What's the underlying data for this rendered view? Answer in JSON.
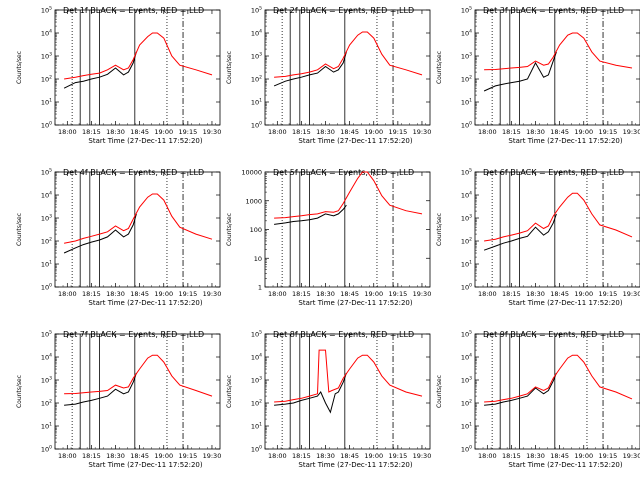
{
  "figure": {
    "ylabel": "Counts/sec",
    "xlabel": "Start Time (27-Dec-11 17:52:20)",
    "x_tick_labels": [
      "18:00",
      "18:15",
      "18:30",
      "18:45",
      "19:00",
      "19:15",
      "19:30"
    ]
  },
  "chart_data": [
    {
      "type": "line",
      "title": "Det 1f BLACK = Events, RED = LLD",
      "xlabel": "Start Time (27-Dec-11 17:52:20)",
      "ylabel": "Counts/sec",
      "y_scale": "log",
      "x_ticks": [
        "18:00",
        "18:15",
        "18:30",
        "18:45",
        "19:00",
        "19:15",
        "19:30"
      ],
      "y_ticks": [
        "10^0",
        "10^1",
        "10^2",
        "10^3",
        "10^4",
        "10^5"
      ],
      "ylim": [
        1,
        100000
      ],
      "series": [
        {
          "name": "Events",
          "color": "#000000",
          "x": [
            "17:58",
            "18:05",
            "18:10",
            "18:15",
            "18:20",
            "18:25",
            "18:30",
            "18:35",
            "18:38",
            "18:41",
            "18:43"
          ],
          "y": [
            40,
            70,
            80,
            100,
            120,
            160,
            300,
            150,
            200,
            500,
            1500
          ]
        },
        {
          "name": "LLD",
          "color": "#ff0000",
          "x": [
            "17:58",
            "18:05",
            "18:10",
            "18:15",
            "18:20",
            "18:25",
            "18:30",
            "18:35",
            "18:38",
            "18:41",
            "18:45",
            "18:50",
            "18:53",
            "18:56",
            "19:00",
            "19:05",
            "19:10",
            "19:20",
            "19:30"
          ],
          "y": [
            100,
            120,
            140,
            160,
            180,
            250,
            400,
            250,
            300,
            700,
            3000,
            7000,
            10000,
            10000,
            6000,
            1000,
            400,
            250,
            150
          ]
        }
      ]
    },
    {
      "type": "line",
      "title": "Det 2f BLACK = Events, RED = LLD",
      "xlabel": "Start Time (27-Dec-11 17:52:20)",
      "ylabel": "Counts/sec",
      "y_scale": "log",
      "x_ticks": [
        "18:00",
        "18:15",
        "18:30",
        "18:45",
        "19:00",
        "19:15",
        "19:30"
      ],
      "y_ticks": [
        "10^0",
        "10^1",
        "10^2",
        "10^3",
        "10^4",
        "10^5"
      ],
      "ylim": [
        1,
        100000
      ],
      "series": [
        {
          "name": "Events",
          "color": "#000000",
          "x": [
            "17:58",
            "18:05",
            "18:10",
            "18:15",
            "18:20",
            "18:25",
            "18:30",
            "18:35",
            "18:38",
            "18:41",
            "18:43"
          ],
          "y": [
            50,
            80,
            100,
            120,
            150,
            180,
            350,
            200,
            250,
            500,
            1500
          ]
        },
        {
          "name": "LLD",
          "color": "#ff0000",
          "x": [
            "17:58",
            "18:05",
            "18:10",
            "18:15",
            "18:20",
            "18:25",
            "18:30",
            "18:35",
            "18:38",
            "18:41",
            "18:45",
            "18:50",
            "18:53",
            "18:56",
            "19:00",
            "19:05",
            "19:10",
            "19:20",
            "19:30"
          ],
          "y": [
            120,
            130,
            150,
            170,
            200,
            250,
            450,
            280,
            350,
            800,
            3000,
            8000,
            11000,
            11000,
            6000,
            1200,
            400,
            250,
            150
          ]
        }
      ]
    },
    {
      "type": "line",
      "title": "Det 3f BLACK = Events, RED = LLD",
      "xlabel": "Start Time (27-Dec-11 17:52:20)",
      "ylabel": "Counts/sec",
      "y_scale": "log",
      "x_ticks": [
        "18:00",
        "18:15",
        "18:30",
        "18:45",
        "19:00",
        "19:15",
        "19:30"
      ],
      "y_ticks": [
        "10^0",
        "10^1",
        "10^2",
        "10^3",
        "10^4",
        "10^5"
      ],
      "ylim": [
        1,
        100000
      ],
      "series": [
        {
          "name": "Events",
          "color": "#000000",
          "x": [
            "17:58",
            "18:05",
            "18:10",
            "18:15",
            "18:20",
            "18:25",
            "18:30",
            "18:35",
            "18:38",
            "18:41",
            "18:43"
          ],
          "y": [
            30,
            50,
            60,
            70,
            80,
            100,
            500,
            120,
            150,
            600,
            1500
          ]
        },
        {
          "name": "LLD",
          "color": "#ff0000",
          "x": [
            "17:58",
            "18:05",
            "18:10",
            "18:15",
            "18:20",
            "18:25",
            "18:30",
            "18:35",
            "18:38",
            "18:41",
            "18:45",
            "18:50",
            "18:53",
            "18:56",
            "19:00",
            "19:05",
            "19:10",
            "19:20",
            "19:30"
          ],
          "y": [
            250,
            260,
            280,
            300,
            320,
            350,
            600,
            400,
            450,
            900,
            3000,
            8000,
            10000,
            10000,
            6000,
            1500,
            600,
            400,
            300
          ]
        }
      ]
    },
    {
      "type": "line",
      "title": "Det 4f BLACK = Events, RED = LLD",
      "xlabel": "Start Time (27-Dec-11 17:52:20)",
      "ylabel": "Counts/sec",
      "y_scale": "log",
      "x_ticks": [
        "18:00",
        "18:15",
        "18:30",
        "18:45",
        "19:00",
        "19:15",
        "19:30"
      ],
      "y_ticks": [
        "10^0",
        "10^1",
        "10^2",
        "10^3",
        "10^4",
        "10^5"
      ],
      "ylim": [
        1,
        100000
      ],
      "series": [
        {
          "name": "Events",
          "color": "#000000",
          "x": [
            "17:58",
            "18:05",
            "18:10",
            "18:15",
            "18:20",
            "18:25",
            "18:30",
            "18:35",
            "18:38",
            "18:41",
            "18:43"
          ],
          "y": [
            30,
            50,
            70,
            90,
            110,
            150,
            300,
            150,
            200,
            500,
            1500
          ]
        },
        {
          "name": "LLD",
          "color": "#ff0000",
          "x": [
            "17:58",
            "18:05",
            "18:10",
            "18:15",
            "18:20",
            "18:25",
            "18:30",
            "18:35",
            "18:38",
            "18:41",
            "18:45",
            "18:50",
            "18:53",
            "18:56",
            "19:00",
            "19:05",
            "19:10",
            "19:20",
            "19:30"
          ],
          "y": [
            80,
            100,
            130,
            160,
            200,
            250,
            450,
            280,
            350,
            900,
            3000,
            8000,
            11000,
            11000,
            6000,
            1200,
            400,
            200,
            120
          ]
        }
      ]
    },
    {
      "type": "line",
      "title": "Det 5f BLACK = Events, RED = LLD",
      "xlabel": "Start Time (27-Dec-11 17:52:20)",
      "ylabel": "Counts/sec",
      "y_scale": "log",
      "x_ticks": [
        "18:00",
        "18:15",
        "18:30",
        "18:45",
        "19:00",
        "19:15",
        "19:30"
      ],
      "y_ticks": [
        "1",
        "10",
        "100",
        "1000",
        "10000"
      ],
      "ylim": [
        1,
        10000
      ],
      "series": [
        {
          "name": "Events",
          "color": "#000000",
          "x": [
            "17:58",
            "18:05",
            "18:10",
            "18:15",
            "18:20",
            "18:25",
            "18:30",
            "18:35",
            "18:38",
            "18:41",
            "18:43"
          ],
          "y": [
            150,
            170,
            190,
            200,
            220,
            250,
            350,
            300,
            350,
            500,
            700
          ]
        },
        {
          "name": "LLD",
          "color": "#ff0000",
          "x": [
            "17:58",
            "18:05",
            "18:10",
            "18:15",
            "18:20",
            "18:25",
            "18:30",
            "18:35",
            "18:38",
            "18:41",
            "18:45",
            "18:50",
            "18:53",
            "18:56",
            "19:00",
            "19:05",
            "19:10",
            "19:20",
            "19:30"
          ],
          "y": [
            250,
            260,
            280,
            300,
            330,
            350,
            420,
            400,
            450,
            800,
            2000,
            6000,
            10000,
            10000,
            5000,
            1500,
            700,
            450,
            350
          ]
        }
      ]
    },
    {
      "type": "line",
      "title": "Det 6f BLACK = Events, RED = LLD",
      "xlabel": "Start Time (27-Dec-11 17:52:20)",
      "ylabel": "Counts/sec",
      "y_scale": "log",
      "x_ticks": [
        "18:00",
        "18:15",
        "18:30",
        "18:45",
        "19:00",
        "19:15",
        "19:30"
      ],
      "y_ticks": [
        "10^0",
        "10^1",
        "10^2",
        "10^3",
        "10^4",
        "10^5"
      ],
      "ylim": [
        1,
        100000
      ],
      "series": [
        {
          "name": "Events",
          "color": "#000000",
          "x": [
            "17:58",
            "18:05",
            "18:10",
            "18:15",
            "18:20",
            "18:25",
            "18:30",
            "18:35",
            "18:38",
            "18:41",
            "18:43"
          ],
          "y": [
            40,
            60,
            80,
            100,
            130,
            160,
            400,
            180,
            250,
            600,
            1500
          ]
        },
        {
          "name": "LLD",
          "color": "#ff0000",
          "x": [
            "17:58",
            "18:05",
            "18:10",
            "18:15",
            "18:20",
            "18:25",
            "18:30",
            "18:35",
            "18:38",
            "18:41",
            "18:45",
            "18:50",
            "18:53",
            "18:56",
            "19:00",
            "19:05",
            "19:10",
            "19:20",
            "19:30"
          ],
          "y": [
            100,
            120,
            150,
            180,
            220,
            280,
            600,
            350,
            450,
            1200,
            3000,
            8000,
            12000,
            12000,
            6000,
            1500,
            500,
            300,
            150
          ]
        }
      ]
    },
    {
      "type": "line",
      "title": "Det 7f BLACK = Events, RED = LLD",
      "xlabel": "Start Time (27-Dec-11 17:52:20)",
      "ylabel": "Counts/sec",
      "y_scale": "log",
      "x_ticks": [
        "18:00",
        "18:15",
        "18:30",
        "18:45",
        "19:00",
        "19:15",
        "19:30"
      ],
      "y_ticks": [
        "10^0",
        "10^1",
        "10^2",
        "10^3",
        "10^4",
        "10^5"
      ],
      "ylim": [
        1,
        100000
      ],
      "series": [
        {
          "name": "Events",
          "color": "#000000",
          "x": [
            "17:58",
            "18:05",
            "18:10",
            "18:15",
            "18:20",
            "18:25",
            "18:30",
            "18:35",
            "18:38",
            "18:41",
            "18:43"
          ],
          "y": [
            80,
            90,
            110,
            130,
            160,
            200,
            400,
            250,
            300,
            800,
            2000
          ]
        },
        {
          "name": "LLD",
          "color": "#ff0000",
          "x": [
            "17:58",
            "18:05",
            "18:10",
            "18:15",
            "18:20",
            "18:25",
            "18:30",
            "18:35",
            "18:38",
            "18:41",
            "18:45",
            "18:50",
            "18:53",
            "18:56",
            "19:00",
            "19:05",
            "19:10",
            "19:20",
            "19:30"
          ],
          "y": [
            250,
            260,
            280,
            300,
            320,
            350,
            600,
            450,
            500,
            1200,
            3000,
            9000,
            12000,
            12000,
            6000,
            1500,
            600,
            350,
            200
          ]
        }
      ]
    },
    {
      "type": "line",
      "title": "Det 8f BLACK = Events, RED = LLD",
      "xlabel": "Start Time (27-Dec-11 17:52:20)",
      "ylabel": "Counts/sec",
      "y_scale": "log",
      "x_ticks": [
        "18:00",
        "18:15",
        "18:30",
        "18:45",
        "19:00",
        "19:15",
        "19:30"
      ],
      "y_ticks": [
        "10^0",
        "10^1",
        "10^2",
        "10^3",
        "10^4",
        "10^5"
      ],
      "ylim": [
        1,
        100000
      ],
      "series": [
        {
          "name": "Events",
          "color": "#000000",
          "x": [
            "17:58",
            "18:05",
            "18:10",
            "18:15",
            "18:20",
            "18:25",
            "18:27",
            "18:30",
            "18:33",
            "18:36",
            "18:38",
            "18:41",
            "18:43"
          ],
          "y": [
            80,
            90,
            100,
            130,
            160,
            200,
            300,
            100,
            40,
            250,
            300,
            800,
            2000
          ]
        },
        {
          "name": "LLD",
          "color": "#ff0000",
          "x": [
            "17:58",
            "18:05",
            "18:10",
            "18:15",
            "18:20",
            "18:25",
            "18:26",
            "18:30",
            "18:32",
            "18:34",
            "18:38",
            "18:41",
            "18:45",
            "18:50",
            "18:53",
            "18:56",
            "19:00",
            "19:05",
            "19:10",
            "19:20",
            "19:30"
          ],
          "y": [
            110,
            120,
            140,
            160,
            200,
            250,
            20000,
            20000,
            300,
            350,
            450,
            1200,
            3000,
            9000,
            12000,
            12000,
            6000,
            1500,
            600,
            300,
            200
          ]
        }
      ]
    },
    {
      "type": "line",
      "title": "Det 9f BLACK = Events, RED = LLD",
      "xlabel": "Start Time (27-Dec-11 17:52:20)",
      "ylabel": "Counts/sec",
      "y_scale": "log",
      "x_ticks": [
        "18:00",
        "18:15",
        "18:30",
        "18:45",
        "19:00",
        "19:15",
        "19:30"
      ],
      "y_ticks": [
        "10^0",
        "10^1",
        "10^2",
        "10^3",
        "10^4",
        "10^5"
      ],
      "ylim": [
        1,
        100000
      ],
      "series": [
        {
          "name": "Events",
          "color": "#000000",
          "x": [
            "17:58",
            "18:05",
            "18:10",
            "18:15",
            "18:20",
            "18:25",
            "18:30",
            "18:35",
            "18:38",
            "18:41",
            "18:43"
          ],
          "y": [
            80,
            90,
            110,
            130,
            160,
            200,
            450,
            250,
            350,
            900,
            2000
          ]
        },
        {
          "name": "LLD",
          "color": "#ff0000",
          "x": [
            "17:58",
            "18:05",
            "18:10",
            "18:15",
            "18:20",
            "18:25",
            "18:30",
            "18:35",
            "18:38",
            "18:41",
            "18:45",
            "18:50",
            "18:53",
            "18:56",
            "19:00",
            "19:05",
            "19:10",
            "19:20",
            "19:30"
          ],
          "y": [
            110,
            120,
            140,
            160,
            200,
            250,
            500,
            350,
            450,
            1200,
            3000,
            9000,
            12000,
            12000,
            6000,
            1500,
            500,
            300,
            150
          ]
        }
      ]
    }
  ]
}
